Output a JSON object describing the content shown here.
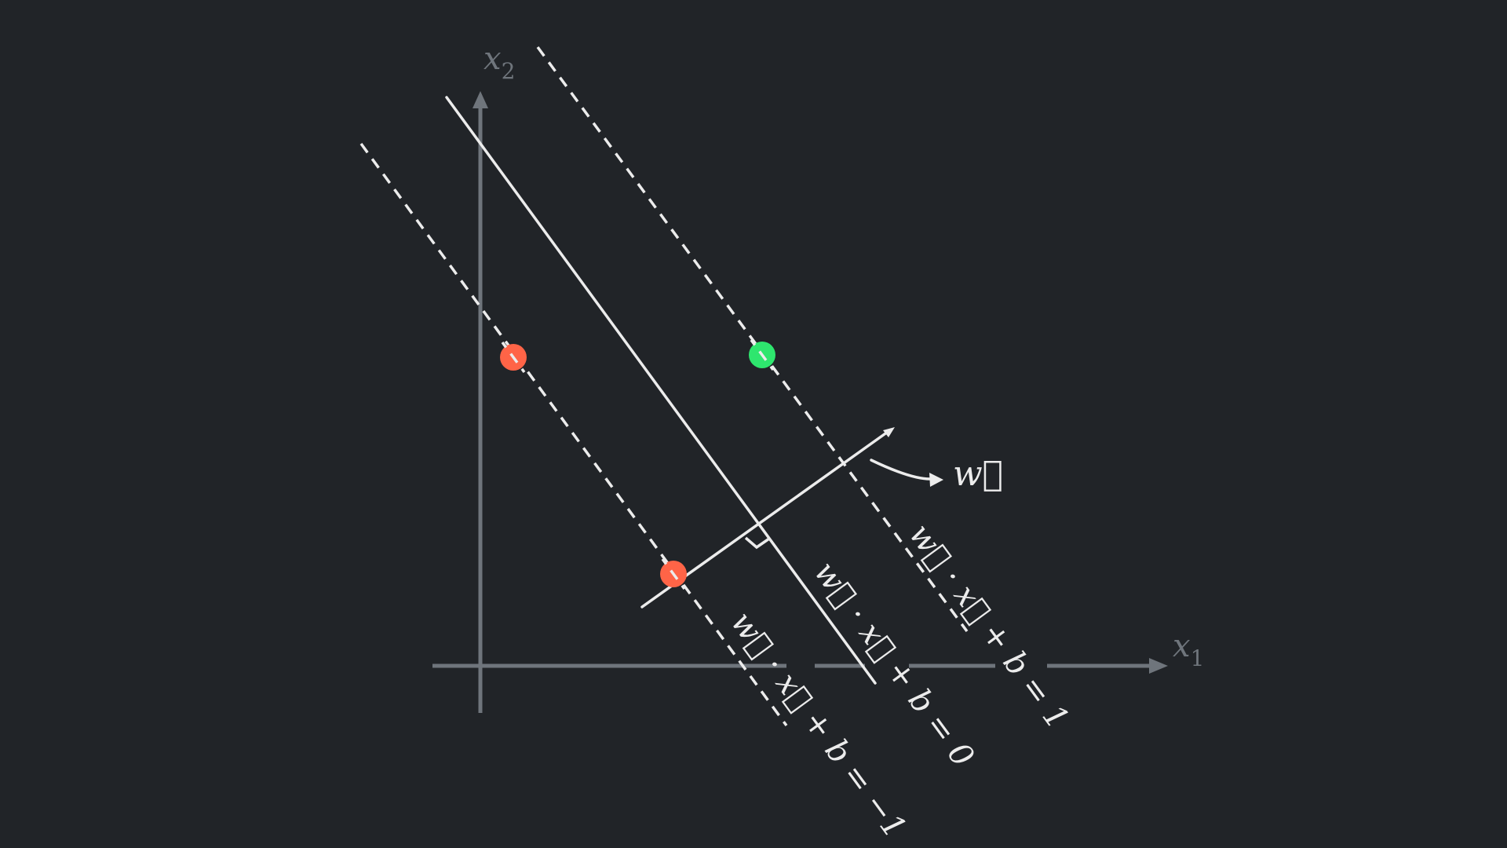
{
  "axes": {
    "x_label": "x",
    "x_subscript": "1",
    "y_label": "x",
    "y_subscript": "2"
  },
  "hyperplanes": {
    "positive_margin_label": "w⃗ · x⃗ + b = 1",
    "decision_boundary_label": "w⃗ · x⃗ + b = 0",
    "negative_margin_label": "w⃗ · x⃗ + b = −1"
  },
  "normal_vector_label": "w⃗",
  "points": [
    {
      "class": "negative",
      "color": "#ff6447"
    },
    {
      "class": "negative",
      "color": "#ff6447"
    },
    {
      "class": "positive",
      "color": "#2ee66e"
    }
  ],
  "colors": {
    "background": "#212428",
    "axis": "#6f757c",
    "line": "#ececec",
    "negative_point": "#ff6447",
    "positive_point": "#2ee66e"
  }
}
